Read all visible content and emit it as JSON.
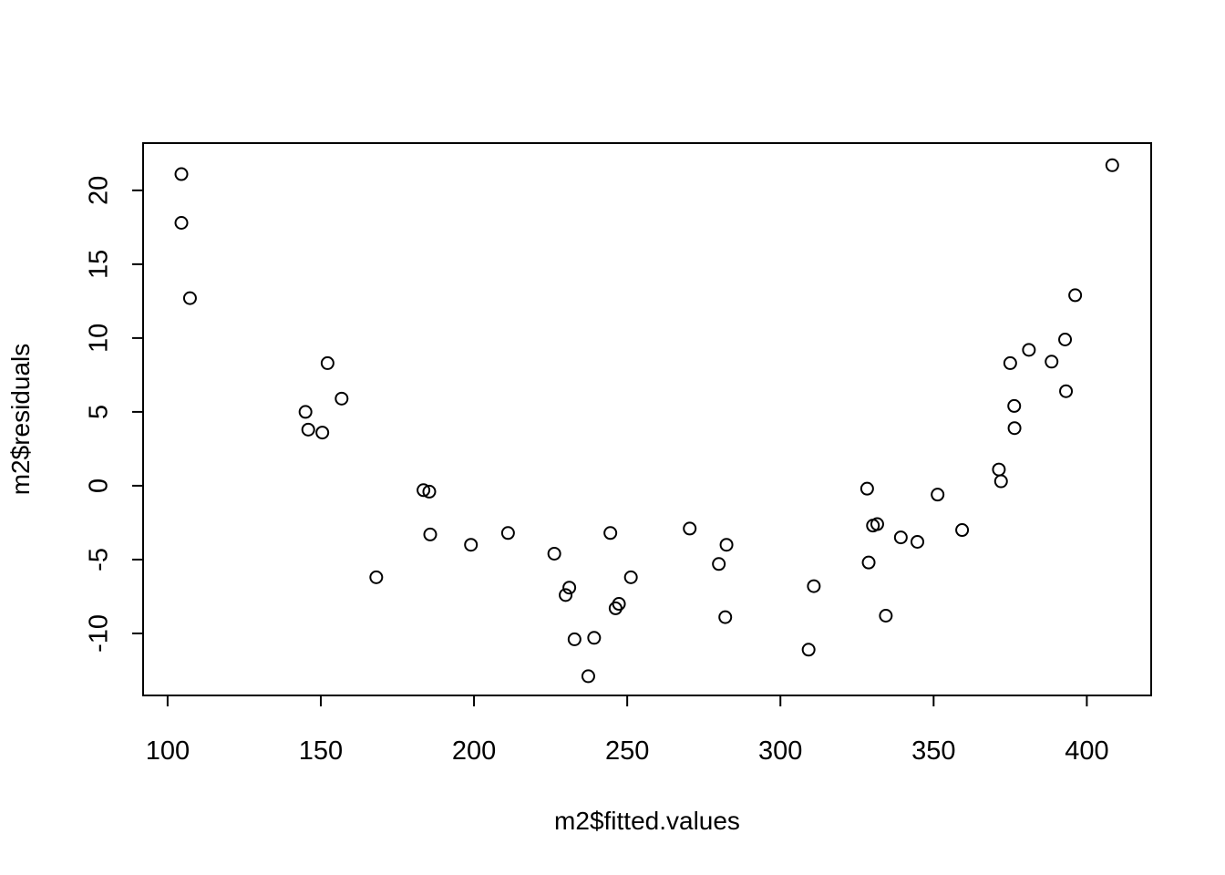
{
  "chart_data": {
    "type": "scatter",
    "title": "",
    "xlabel": "m2$fitted.values",
    "ylabel": "m2$residuals",
    "xlim": [
      92,
      421
    ],
    "ylim": [
      -14.2,
      23.2
    ],
    "x_ticks": [
      100,
      150,
      200,
      250,
      300,
      350,
      400
    ],
    "y_ticks": [
      -10,
      -5,
      0,
      5,
      10,
      15,
      20
    ],
    "x_tick_labels": [
      "100",
      "150",
      "200",
      "250",
      "300",
      "350",
      "400"
    ],
    "y_tick_labels": [
      "-10",
      "-5",
      "0",
      "5",
      "10",
      "15",
      "20"
    ],
    "grid": false,
    "points": [
      {
        "x": 104.5,
        "y": 21.1
      },
      {
        "x": 104.5,
        "y": 17.8
      },
      {
        "x": 107.3,
        "y": 12.7
      },
      {
        "x": 145.0,
        "y": 5.0
      },
      {
        "x": 145.9,
        "y": 3.8
      },
      {
        "x": 150.5,
        "y": 3.6
      },
      {
        "x": 152.2,
        "y": 8.3
      },
      {
        "x": 156.8,
        "y": 5.9
      },
      {
        "x": 168.1,
        "y": -6.2
      },
      {
        "x": 183.5,
        "y": -0.3
      },
      {
        "x": 185.4,
        "y": -0.4
      },
      {
        "x": 185.7,
        "y": -3.3
      },
      {
        "x": 199.0,
        "y": -4.0
      },
      {
        "x": 211.1,
        "y": -3.2
      },
      {
        "x": 226.2,
        "y": -4.6
      },
      {
        "x": 229.9,
        "y": -7.4
      },
      {
        "x": 231.1,
        "y": -6.9
      },
      {
        "x": 232.8,
        "y": -10.4
      },
      {
        "x": 237.3,
        "y": -12.9
      },
      {
        "x": 239.2,
        "y": -10.3
      },
      {
        "x": 244.5,
        "y": -3.2
      },
      {
        "x": 246.2,
        "y": -8.3
      },
      {
        "x": 247.3,
        "y": -8.0
      },
      {
        "x": 251.2,
        "y": -6.2
      },
      {
        "x": 270.4,
        "y": -2.9
      },
      {
        "x": 279.9,
        "y": -5.3
      },
      {
        "x": 282.0,
        "y": -8.9
      },
      {
        "x": 282.4,
        "y": -4.0
      },
      {
        "x": 309.2,
        "y": -11.1
      },
      {
        "x": 310.9,
        "y": -6.8
      },
      {
        "x": 328.3,
        "y": -0.2
      },
      {
        "x": 328.8,
        "y": -5.2
      },
      {
        "x": 330.2,
        "y": -2.7
      },
      {
        "x": 331.6,
        "y": -2.6
      },
      {
        "x": 334.4,
        "y": -8.8
      },
      {
        "x": 339.3,
        "y": -3.5
      },
      {
        "x": 344.7,
        "y": -3.8
      },
      {
        "x": 351.3,
        "y": -0.6
      },
      {
        "x": 359.3,
        "y": -3.0
      },
      {
        "x": 371.3,
        "y": 1.1
      },
      {
        "x": 372.0,
        "y": 0.3
      },
      {
        "x": 375.0,
        "y": 8.3
      },
      {
        "x": 376.3,
        "y": 5.4
      },
      {
        "x": 376.4,
        "y": 3.9
      },
      {
        "x": 381.1,
        "y": 9.2
      },
      {
        "x": 388.5,
        "y": 8.4
      },
      {
        "x": 392.9,
        "y": 9.9
      },
      {
        "x": 393.2,
        "y": 6.4
      },
      {
        "x": 396.2,
        "y": 12.9
      },
      {
        "x": 408.3,
        "y": 21.7
      }
    ]
  }
}
